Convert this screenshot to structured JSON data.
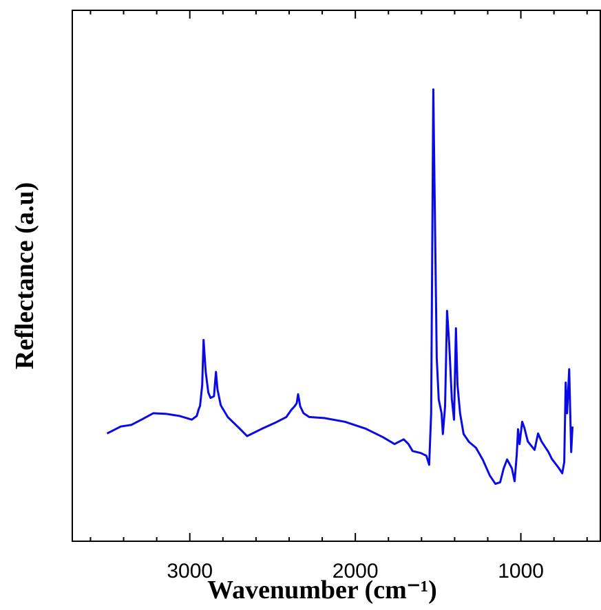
{
  "chart_data": {
    "type": "line",
    "x_label": "Wavenumber (cm⁻¹)",
    "y_label": "Reflectance (a.u)",
    "xlim": [
      3710,
      520
    ],
    "ylim": [
      0,
      100
    ],
    "xticks": [
      3000,
      2000,
      1000
    ],
    "xminorticks": [
      3600,
      3400,
      3200,
      2800,
      2600,
      2400,
      2200,
      1800,
      1600,
      1400,
      1200,
      800,
      600
    ],
    "series": [
      {
        "color": "#0a0ae6",
        "x": [
          3500,
          3417,
          3354,
          3292,
          3221,
          3146,
          3063,
          2988,
          2958,
          2946,
          2938,
          2925,
          2917,
          2904,
          2888,
          2875,
          2854,
          2842,
          2833,
          2813,
          2771,
          2708,
          2654,
          2563,
          2479,
          2417,
          2388,
          2367,
          2354,
          2346,
          2333,
          2313,
          2279,
          2188,
          2063,
          1938,
          1833,
          1763,
          1708,
          1679,
          1654,
          1604,
          1571,
          1554,
          1542,
          1529,
          1521,
          1508,
          1496,
          1479,
          1471,
          1458,
          1446,
          1433,
          1417,
          1404,
          1392,
          1383,
          1367,
          1346,
          1313,
          1271,
          1229,
          1188,
          1154,
          1125,
          1104,
          1083,
          1054,
          1038,
          1025,
          1017,
          1008,
          992,
          979,
          958,
          917,
          896,
          875,
          833,
          813,
          771,
          750,
          738,
          729,
          721,
          708,
          696,
          688
        ],
        "values": [
          20.3,
          21.6,
          21.9,
          22.9,
          24.1,
          24.0,
          23.6,
          22.9,
          23.6,
          24.9,
          25.5,
          29.4,
          37.9,
          31.9,
          28.0,
          27.0,
          27.3,
          31.9,
          28.6,
          25.6,
          23.4,
          21.5,
          19.8,
          21.2,
          22.4,
          23.4,
          24.7,
          25.4,
          26.0,
          27.7,
          25.4,
          24.1,
          23.4,
          23.2,
          22.5,
          21.2,
          19.6,
          18.3,
          19.2,
          18.3,
          17.0,
          16.6,
          16.1,
          14.4,
          24.1,
          85.1,
          65.7,
          34.5,
          26.7,
          24.1,
          20.2,
          25.4,
          43.4,
          37.2,
          26.8,
          22.9,
          40.1,
          29.5,
          24.1,
          20.2,
          18.7,
          17.6,
          15.3,
          12.4,
          10.8,
          11.1,
          13.7,
          15.4,
          13.7,
          11.3,
          16.3,
          21.1,
          18.3,
          22.5,
          21.4,
          18.8,
          17.2,
          20.3,
          18.8,
          16.8,
          15.5,
          13.8,
          12.8,
          14.9,
          29.9,
          24.1,
          32.4,
          16.8,
          21.6
        ]
      }
    ]
  }
}
